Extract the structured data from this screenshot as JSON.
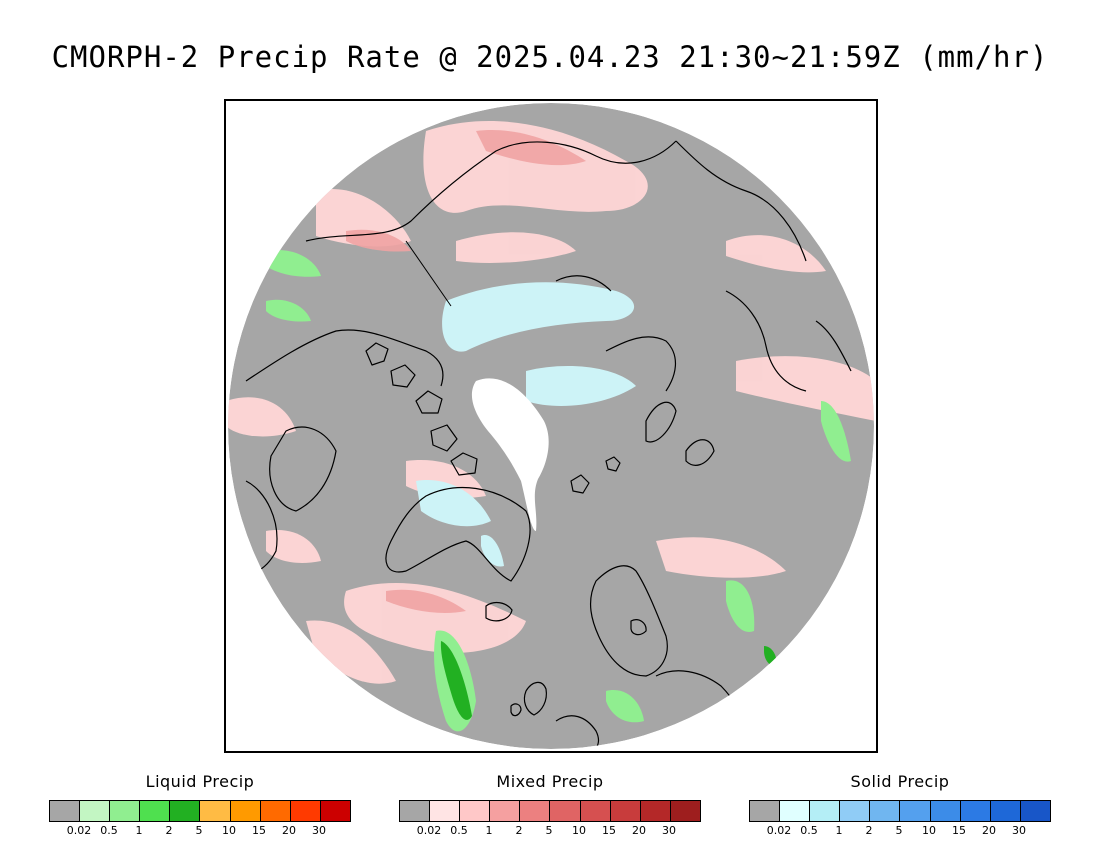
{
  "title": "CMORPH-2 Precip Rate @ 2025.04.23 21:30~21:59Z (mm/hr)",
  "colors": {
    "nodata_gray": "#a6a6a6",
    "coast": "#000000",
    "frame": "#000000"
  },
  "legends": [
    {
      "title": "Liquid Precip",
      "colors": [
        "#a6a6a6",
        "#c3f6c3",
        "#90ee90",
        "#4fe04f",
        "#22b022",
        "#ffbb44",
        "#ff9a00",
        "#ff6a00",
        "#ff3a00",
        "#cc0000"
      ],
      "ticks": [
        "0.02",
        "0.5",
        "1",
        "2",
        "5",
        "10",
        "15",
        "20",
        "30"
      ]
    },
    {
      "title": "Mixed Precip",
      "colors": [
        "#a6a6a6",
        "#ffe4e4",
        "#ffc8c8",
        "#f5a0a0",
        "#ec8080",
        "#e06464",
        "#d65050",
        "#c83c3c",
        "#b42828",
        "#9e1e1e"
      ],
      "ticks": [
        "0.02",
        "0.5",
        "1",
        "2",
        "5",
        "10",
        "15",
        "20",
        "30"
      ]
    },
    {
      "title": "Solid Precip",
      "colors": [
        "#a6a6a6",
        "#e0ffff",
        "#b4eef6",
        "#90ccf6",
        "#70b6f0",
        "#54a0ee",
        "#3c8ce8",
        "#2c7ae4",
        "#1e68d8",
        "#1856c8"
      ],
      "ticks": [
        "0.02",
        "0.5",
        "1",
        "2",
        "5",
        "10",
        "15",
        "20",
        "30"
      ]
    }
  ]
}
